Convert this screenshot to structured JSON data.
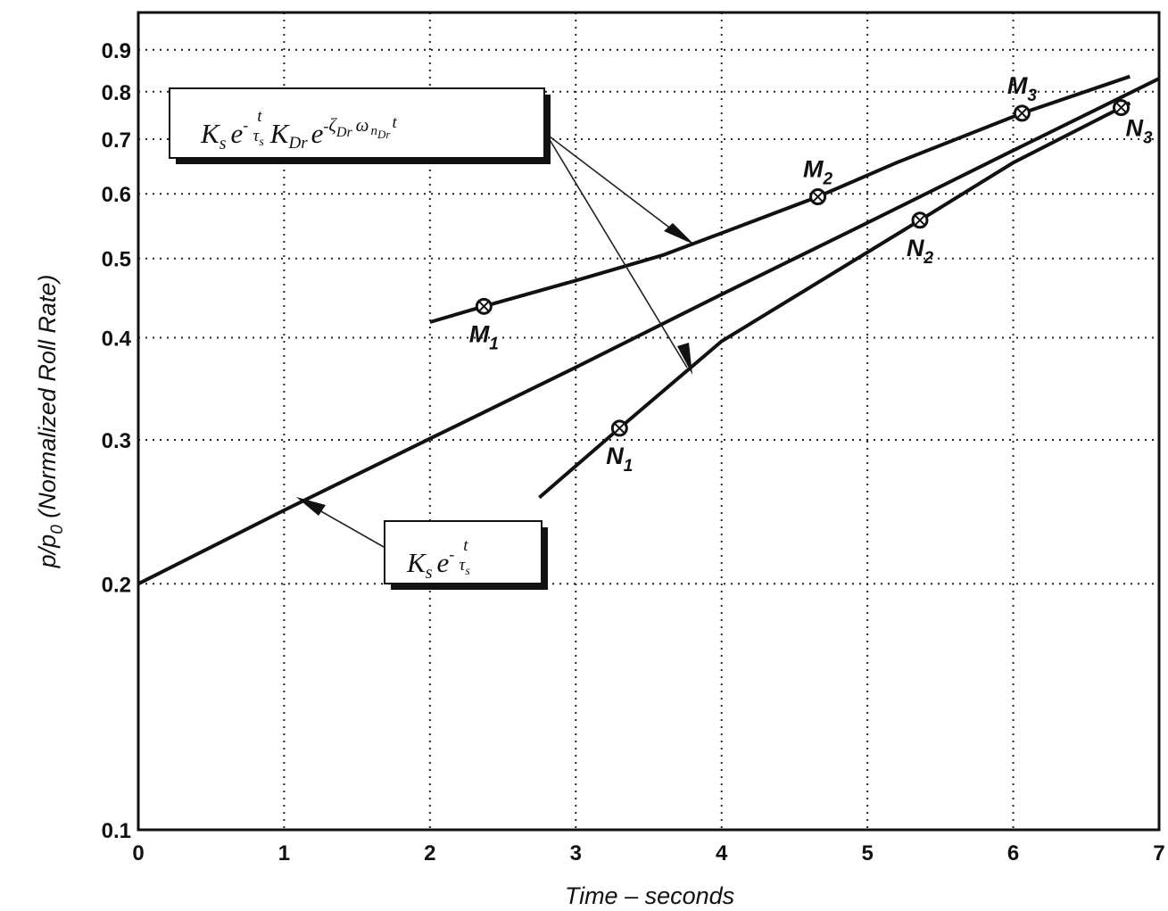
{
  "chart_data": {
    "type": "line",
    "yscale": "log",
    "xlim": [
      0,
      7
    ],
    "ylim": [
      0.1,
      1.0
    ],
    "x_ticks": [
      0,
      1,
      2,
      3,
      4,
      5,
      6,
      7
    ],
    "y_ticks": [
      0.1,
      0.2,
      0.3,
      0.4,
      0.5,
      0.6,
      0.7,
      0.8,
      0.9
    ],
    "x_tick_labels": [
      "0",
      "1",
      "2",
      "3",
      "4",
      "5",
      "6",
      "7"
    ],
    "y_tick_labels": [
      "0.1",
      "0.2",
      "0.3",
      "0.4",
      "0.5",
      "0.6",
      "0.7",
      "0.8",
      "0.9"
    ],
    "xlabel": "Time – seconds",
    "ylabel": "p/p0  (Normalized Roll Rate)",
    "grid": true,
    "series": [
      {
        "name": "K_s e^(-t/τ_s)",
        "x": [
          0,
          1,
          2,
          3,
          4,
          5,
          6,
          7
        ],
        "y": [
          0.2,
          0.246,
          0.301,
          0.368,
          0.452,
          0.553,
          0.678,
          0.83
        ]
      },
      {
        "name": "K_s e^(-t/τ_s) K_Dr e^(-ζ_Dr ω_nDr t)",
        "x": [
          2.0,
          2.37,
          3.0,
          3.6,
          4.0,
          4.66,
          5.2,
          6.06,
          6.8
        ],
        "y": [
          0.418,
          0.437,
          0.47,
          0.505,
          0.537,
          0.595,
          0.655,
          0.753,
          0.835
        ]
      },
      {
        "name": "",
        "x": [
          2.75,
          3.3,
          4.0,
          5.36,
          6.0,
          6.74,
          6.8
        ],
        "y": [
          0.255,
          0.31,
          0.396,
          0.557,
          0.655,
          0.765,
          0.775
        ]
      }
    ],
    "points": [
      {
        "label": "M",
        "sub": "1",
        "x": 2.37,
        "y": 0.437,
        "label_pos": "below"
      },
      {
        "label": "M",
        "sub": "2",
        "x": 4.66,
        "y": 0.595,
        "label_pos": "above"
      },
      {
        "label": "M",
        "sub": "3",
        "x": 6.06,
        "y": 0.753,
        "label_pos": "above"
      },
      {
        "label": "N",
        "sub": "1",
        "x": 3.3,
        "y": 0.31,
        "label_pos": "below"
      },
      {
        "label": "N",
        "sub": "2",
        "x": 5.36,
        "y": 0.557,
        "label_pos": "below"
      },
      {
        "label": "N",
        "sub": "3",
        "x": 6.74,
        "y": 0.765,
        "label_pos": "below-right"
      }
    ],
    "annotations": {
      "dutch_roll_box": {
        "parts": [
          "K",
          "s",
          "e",
          "-",
          "t",
          "τ",
          "s",
          "K",
          "Dr",
          "e",
          "-",
          "ζ",
          "Dr",
          "ω",
          "n",
          "Dr",
          "t"
        ]
      },
      "spiral_box": {
        "parts": [
          "K",
          "s",
          "e",
          "-",
          "t",
          "τ",
          "s"
        ]
      }
    }
  }
}
